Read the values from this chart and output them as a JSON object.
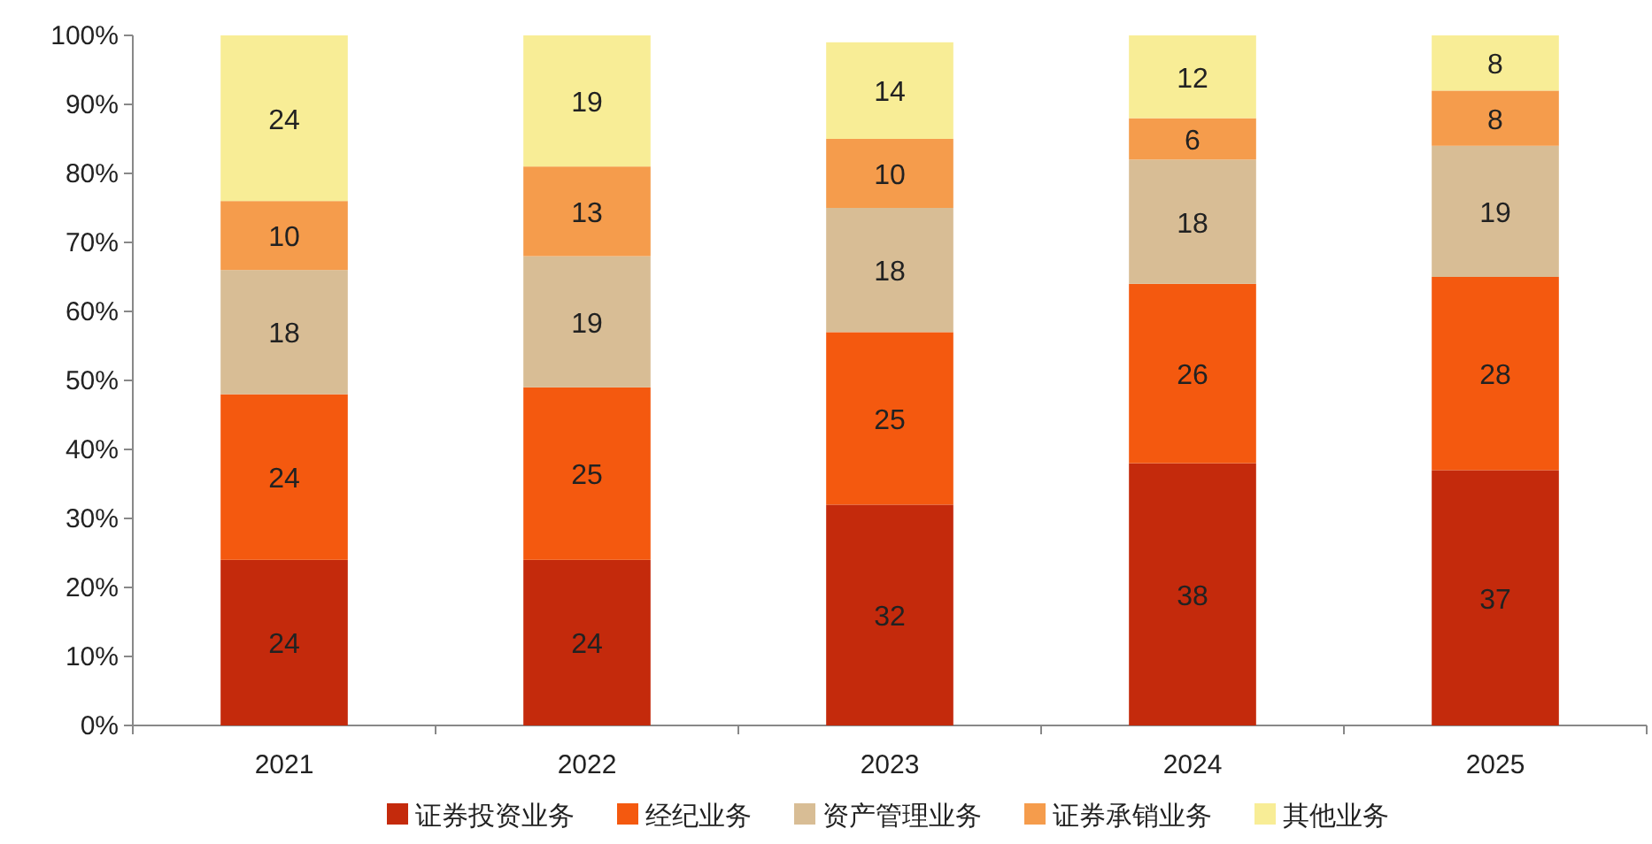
{
  "chart_data": {
    "type": "bar",
    "stacked": true,
    "categories": [
      "2021",
      "2022",
      "2023",
      "2024",
      "2025"
    ],
    "series": [
      {
        "name": "证券投资业务",
        "color": "#c42a0c",
        "values": [
          24,
          24,
          32,
          38,
          37
        ]
      },
      {
        "name": "经纪业务",
        "color": "#f4590f",
        "values": [
          24,
          25,
          25,
          26,
          28
        ]
      },
      {
        "name": "资产管理业务",
        "color": "#d8bd95",
        "values": [
          18,
          19,
          18,
          18,
          19
        ]
      },
      {
        "name": "证券承销业务",
        "color": "#f59c4c",
        "values": [
          10,
          13,
          10,
          6,
          8
        ]
      },
      {
        "name": "其他业务",
        "color": "#f8ed96",
        "values": [
          24,
          19,
          14,
          12,
          8
        ]
      }
    ],
    "ylim": [
      0,
      100
    ],
    "yticks": [
      {
        "value": 0,
        "label": "0%"
      },
      {
        "value": 10,
        "label": "10%"
      },
      {
        "value": 20,
        "label": "20%"
      },
      {
        "value": 30,
        "label": "30%"
      },
      {
        "value": 40,
        "label": "40%"
      },
      {
        "value": 50,
        "label": "50%"
      },
      {
        "value": 60,
        "label": "60%"
      },
      {
        "value": 70,
        "label": "70%"
      },
      {
        "value": 80,
        "label": "80%"
      },
      {
        "value": 90,
        "label": "90%"
      },
      {
        "value": 100,
        "label": "100%"
      }
    ],
    "data_labels": true,
    "legend": "bottom"
  }
}
